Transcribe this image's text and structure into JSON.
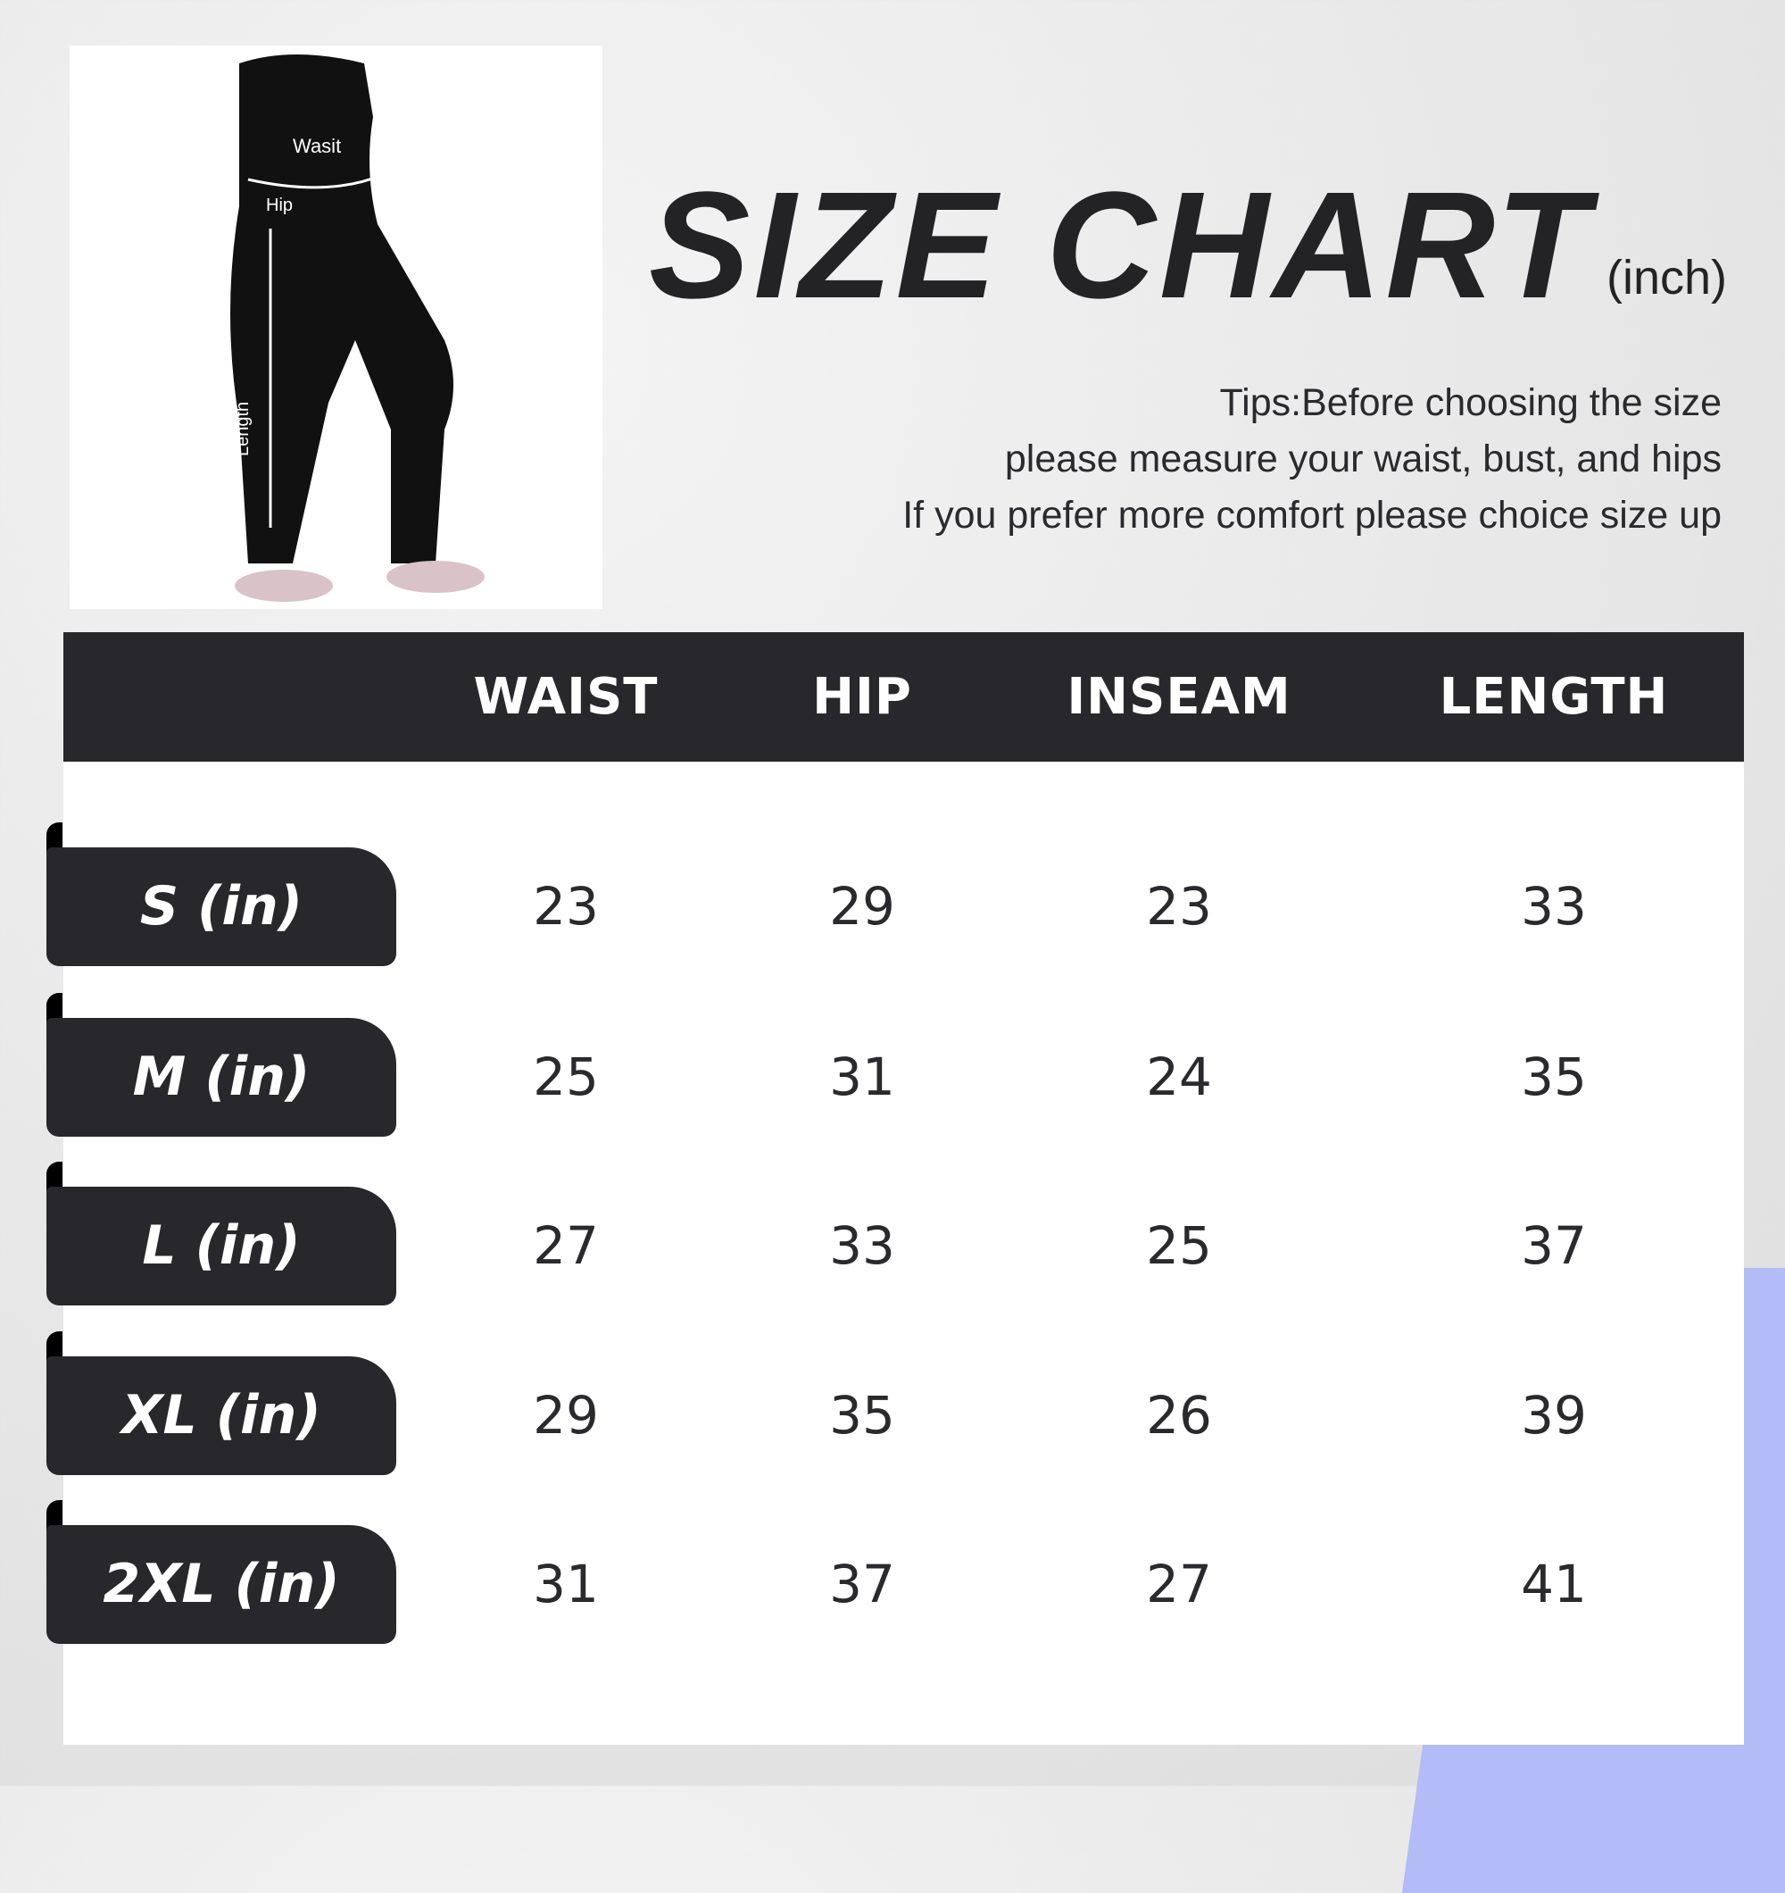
{
  "title": "SIZE CHART",
  "unit": "(inch)",
  "tips": [
    "Tips:Before choosing the size",
    "please measure your waist, bust, and hips",
    "If you prefer more comfort please choice size up"
  ],
  "photo_labels": {
    "waist": "Wasit",
    "hip": "Hip",
    "length": "Length"
  },
  "columns": [
    "WAIST",
    "HIP",
    "INSEAM",
    "LENGTH"
  ],
  "rows": [
    {
      "size": "S (in)",
      "values": [
        "23",
        "29",
        "23",
        "33"
      ]
    },
    {
      "size": "M (in)",
      "values": [
        "25",
        "31",
        "24",
        "35"
      ]
    },
    {
      "size": "L (in)",
      "values": [
        "27",
        "33",
        "25",
        "37"
      ]
    },
    {
      "size": "XL (in)",
      "values": [
        "29",
        "35",
        "26",
        "39"
      ]
    },
    {
      "size": "2XL (in)",
      "values": [
        "31",
        "37",
        "27",
        "41"
      ]
    }
  ],
  "colors": {
    "dark": "#28282c",
    "accent": "#b3bcf6"
  }
}
